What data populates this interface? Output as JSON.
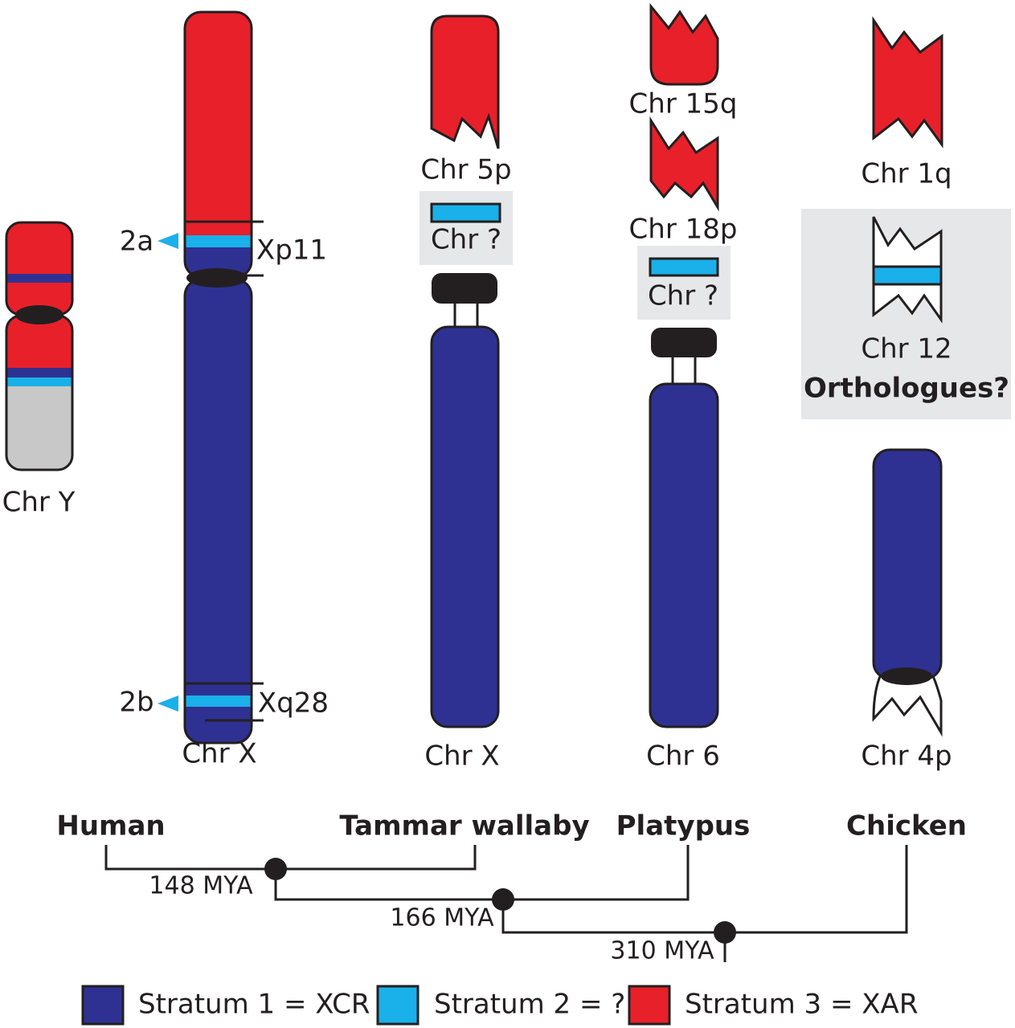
{
  "human": {
    "chr_y": "Chr Y",
    "chr_x": "Chr X",
    "marker_2a": "2a",
    "band_xp11": "Xp11",
    "marker_2b": "2b",
    "band_xq28": "Xq28"
  },
  "wallaby": {
    "chr_5p": "Chr 5p",
    "chr_unknown": "Chr ?",
    "chr_x": "Chr X"
  },
  "platypus": {
    "chr_15q": "Chr 15q",
    "chr_18p": "Chr 18p",
    "chr_unknown": "Chr ?",
    "chr_6": "Chr 6"
  },
  "chicken": {
    "chr_1q": "Chr 1q",
    "chr_12": "Chr 12",
    "orthologues": "Orthologues?",
    "chr_4p": "Chr 4p"
  },
  "tree": {
    "species": [
      "Human",
      "Tammar wallaby",
      "Platypus",
      "Chicken"
    ],
    "divergences": [
      "148 MYA",
      "166 MYA",
      "310 MYA"
    ]
  },
  "legend": [
    "Stratum 1 = XCR",
    "Stratum 2 = ?",
    "Stratum 3 = XAR"
  ]
}
